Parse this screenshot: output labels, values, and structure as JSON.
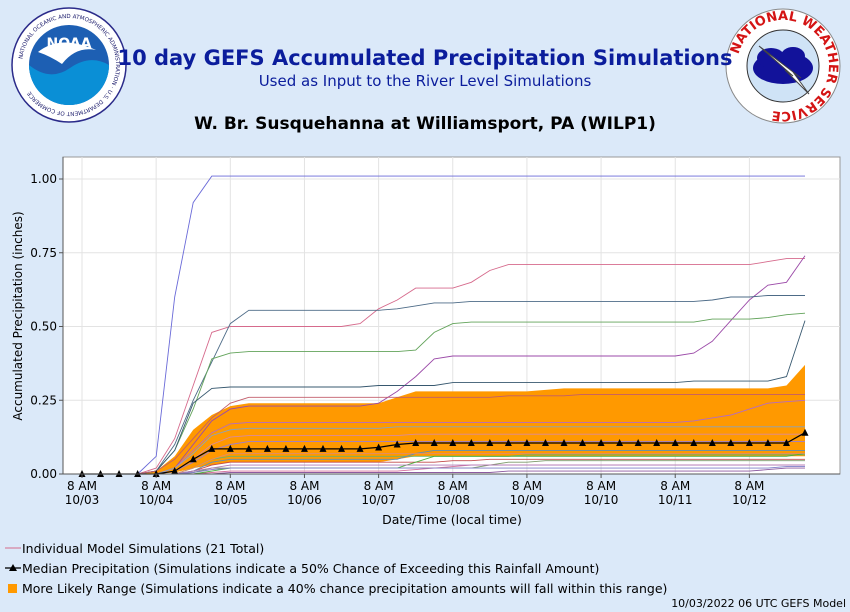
{
  "header": {
    "title": "10 day GEFS Accumulated Precipitation Simulations",
    "subtitle": "Used as Input to the River Level Simulations",
    "station": "W. Br. Susquehanna at Williamsport, PA (WILP1)"
  },
  "logos": {
    "noaa_text": "NOAA",
    "noaa_ring": "NATIONAL OCEANIC AND ATMOSPHERIC ADMINISTRATION · U.S. DEPARTMENT OF COMMERCE",
    "nws_ring": "NATIONAL WEATHER SERVICE"
  },
  "legend": {
    "individual": "Individual Model Simulations (21 Total)",
    "median": "Median Precipitation (Simulations indicate a 50% Chance of Exceeding this Rainfall Amount)",
    "range": "More Likely Range (Simulations indicate a 40% chance precipitation amounts will fall within this range)"
  },
  "footer": "10/03/2022 06 UTC GEFS Model",
  "chart_data": {
    "type": "line",
    "xlabel": "Date/Time (local time)",
    "ylabel": "Accumulated Precipitation (inches)",
    "ylim": [
      0,
      1.05
    ],
    "yticks": [
      "0.00",
      "0.25",
      "0.50",
      "0.75",
      "1.00"
    ],
    "xticks": [
      {
        "t": 0,
        "time": "8 AM",
        "date": "10/03"
      },
      {
        "t": 24,
        "time": "8 AM",
        "date": "10/04"
      },
      {
        "t": 48,
        "time": "8 AM",
        "date": "10/05"
      },
      {
        "t": 72,
        "time": "8 AM",
        "date": "10/06"
      },
      {
        "t": 96,
        "time": "8 AM",
        "date": "10/07"
      },
      {
        "t": 120,
        "time": "8 AM",
        "date": "10/08"
      },
      {
        "t": 144,
        "time": "8 AM",
        "date": "10/09"
      },
      {
        "t": 168,
        "time": "8 AM",
        "date": "10/10"
      },
      {
        "t": 192,
        "time": "8 AM",
        "date": "10/11"
      },
      {
        "t": 216,
        "time": "8 AM",
        "date": "10/12"
      }
    ],
    "xlim": [
      -7,
      240
    ],
    "hours": [
      0,
      6,
      12,
      18,
      24,
      30,
      36,
      42,
      48,
      54,
      60,
      66,
      72,
      78,
      84,
      90,
      96,
      102,
      108,
      114,
      120,
      126,
      132,
      138,
      144,
      150,
      156,
      162,
      168,
      174,
      180,
      186,
      192,
      198,
      204,
      210,
      216,
      222,
      228,
      234
    ],
    "median": [
      0,
      0,
      0,
      0,
      0,
      0.01,
      0.05,
      0.085,
      0.085,
      0.085,
      0.085,
      0.085,
      0.085,
      0.085,
      0.085,
      0.085,
      0.09,
      0.1,
      0.105,
      0.105,
      0.105,
      0.105,
      0.105,
      0.105,
      0.105,
      0.105,
      0.105,
      0.105,
      0.105,
      0.105,
      0.105,
      0.105,
      0.105,
      0.105,
      0.105,
      0.105,
      0.105,
      0.105,
      0.105,
      0.14
    ],
    "range_low": [
      0,
      0,
      0,
      0,
      0,
      0.005,
      0.02,
      0.03,
      0.04,
      0.04,
      0.04,
      0.04,
      0.04,
      0.04,
      0.04,
      0.04,
      0.04,
      0.05,
      0.06,
      0.06,
      0.06,
      0.06,
      0.06,
      0.06,
      0.06,
      0.06,
      0.06,
      0.06,
      0.06,
      0.06,
      0.06,
      0.06,
      0.06,
      0.06,
      0.06,
      0.06,
      0.06,
      0.06,
      0.06,
      0.06
    ],
    "range_high": [
      0,
      0,
      0,
      0,
      0.01,
      0.06,
      0.15,
      0.2,
      0.23,
      0.24,
      0.24,
      0.24,
      0.24,
      0.24,
      0.24,
      0.24,
      0.24,
      0.26,
      0.28,
      0.28,
      0.28,
      0.28,
      0.28,
      0.28,
      0.28,
      0.285,
      0.29,
      0.29,
      0.29,
      0.29,
      0.29,
      0.29,
      0.29,
      0.29,
      0.29,
      0.29,
      0.29,
      0.29,
      0.3,
      0.37
    ],
    "series": [
      {
        "color": "#6a6ad8",
        "values": [
          0,
          0,
          0,
          0,
          0.06,
          0.6,
          0.92,
          1.01,
          1.01,
          1.01,
          1.01,
          1.01,
          1.01,
          1.01,
          1.01,
          1.01,
          1.01,
          1.01,
          1.01,
          1.01,
          1.01,
          1.01,
          1.01,
          1.01,
          1.01,
          1.01,
          1.01,
          1.01,
          1.01,
          1.01,
          1.01,
          1.01,
          1.01,
          1.01,
          1.01,
          1.01,
          1.01,
          1.01,
          1.01,
          1.01
        ]
      },
      {
        "color": "#d66a8c",
        "values": [
          0,
          0,
          0,
          0,
          0.02,
          0.12,
          0.3,
          0.48,
          0.5,
          0.5,
          0.5,
          0.5,
          0.5,
          0.5,
          0.5,
          0.51,
          0.56,
          0.59,
          0.63,
          0.63,
          0.63,
          0.65,
          0.69,
          0.71,
          0.71,
          0.71,
          0.71,
          0.71,
          0.71,
          0.71,
          0.71,
          0.71,
          0.71,
          0.71,
          0.71,
          0.71,
          0.71,
          0.72,
          0.73,
          0.73
        ]
      },
      {
        "color": "#9b4aa8",
        "values": [
          0,
          0,
          0,
          0,
          0,
          0.02,
          0.1,
          0.18,
          0.22,
          0.23,
          0.23,
          0.23,
          0.23,
          0.23,
          0.23,
          0.23,
          0.24,
          0.28,
          0.33,
          0.39,
          0.4,
          0.4,
          0.4,
          0.4,
          0.4,
          0.4,
          0.4,
          0.4,
          0.4,
          0.4,
          0.4,
          0.4,
          0.4,
          0.41,
          0.45,
          0.52,
          0.59,
          0.64,
          0.65,
          0.74
        ]
      },
      {
        "color": "#4d6b87",
        "values": [
          0,
          0,
          0,
          0,
          0.01,
          0.1,
          0.25,
          0.38,
          0.51,
          0.555,
          0.555,
          0.555,
          0.555,
          0.555,
          0.555,
          0.555,
          0.555,
          0.56,
          0.57,
          0.58,
          0.58,
          0.585,
          0.585,
          0.585,
          0.585,
          0.585,
          0.585,
          0.585,
          0.585,
          0.585,
          0.585,
          0.585,
          0.585,
          0.585,
          0.59,
          0.6,
          0.6,
          0.605,
          0.605,
          0.605
        ]
      },
      {
        "color": "#62a35a",
        "values": [
          0,
          0,
          0,
          0,
          0.01,
          0.08,
          0.22,
          0.39,
          0.41,
          0.415,
          0.415,
          0.415,
          0.415,
          0.415,
          0.415,
          0.415,
          0.415,
          0.415,
          0.42,
          0.48,
          0.51,
          0.515,
          0.515,
          0.515,
          0.515,
          0.515,
          0.515,
          0.515,
          0.515,
          0.515,
          0.515,
          0.515,
          0.515,
          0.515,
          0.525,
          0.525,
          0.525,
          0.53,
          0.54,
          0.545
        ]
      },
      {
        "color": "#37586f",
        "values": [
          0,
          0,
          0,
          0,
          0.01,
          0.08,
          0.24,
          0.29,
          0.295,
          0.295,
          0.295,
          0.295,
          0.295,
          0.295,
          0.295,
          0.295,
          0.3,
          0.3,
          0.3,
          0.3,
          0.31,
          0.31,
          0.31,
          0.31,
          0.31,
          0.31,
          0.31,
          0.31,
          0.31,
          0.31,
          0.31,
          0.31,
          0.31,
          0.315,
          0.315,
          0.315,
          0.315,
          0.315,
          0.33,
          0.52
        ]
      },
      {
        "color": "#c25d6a",
        "values": [
          0,
          0,
          0,
          0,
          0.01,
          0.05,
          0.12,
          0.19,
          0.24,
          0.26,
          0.26,
          0.26,
          0.26,
          0.26,
          0.26,
          0.26,
          0.26,
          0.26,
          0.26,
          0.26,
          0.26,
          0.26,
          0.26,
          0.265,
          0.265,
          0.265,
          0.265,
          0.27,
          0.27,
          0.27,
          0.27,
          0.27,
          0.27,
          0.27,
          0.27,
          0.27,
          0.27,
          0.27,
          0.27,
          0.27
        ]
      },
      {
        "color": "#b36cc4",
        "values": [
          0,
          0,
          0,
          0,
          0,
          0.02,
          0.08,
          0.14,
          0.17,
          0.175,
          0.175,
          0.175,
          0.175,
          0.175,
          0.175,
          0.175,
          0.175,
          0.175,
          0.175,
          0.175,
          0.175,
          0.175,
          0.175,
          0.175,
          0.175,
          0.175,
          0.175,
          0.175,
          0.175,
          0.175,
          0.175,
          0.175,
          0.175,
          0.18,
          0.19,
          0.2,
          0.22,
          0.24,
          0.245,
          0.25
        ]
      },
      {
        "color": "#8aa3bd",
        "values": [
          0,
          0,
          0,
          0,
          0,
          0.02,
          0.07,
          0.13,
          0.15,
          0.155,
          0.155,
          0.155,
          0.155,
          0.155,
          0.155,
          0.155,
          0.155,
          0.16,
          0.16,
          0.16,
          0.16,
          0.16,
          0.16,
          0.16,
          0.16,
          0.16,
          0.16,
          0.16,
          0.16,
          0.16,
          0.16,
          0.16,
          0.16,
          0.16,
          0.16,
          0.16,
          0.16,
          0.16,
          0.16,
          0.16
        ]
      },
      {
        "color": "#d98a9c",
        "values": [
          0,
          0,
          0,
          0,
          0,
          0.01,
          0.05,
          0.1,
          0.125,
          0.13,
          0.13,
          0.13,
          0.13,
          0.13,
          0.13,
          0.13,
          0.13,
          0.13,
          0.135,
          0.135,
          0.135,
          0.135,
          0.135,
          0.135,
          0.135,
          0.135,
          0.135,
          0.135,
          0.135,
          0.135,
          0.135,
          0.135,
          0.135,
          0.135,
          0.135,
          0.135,
          0.135,
          0.135,
          0.135,
          0.135
        ]
      },
      {
        "color": "#9c7ed0",
        "values": [
          0,
          0,
          0,
          0,
          0,
          0.01,
          0.04,
          0.08,
          0.1,
          0.11,
          0.11,
          0.11,
          0.11,
          0.11,
          0.11,
          0.11,
          0.11,
          0.11,
          0.11,
          0.11,
          0.11,
          0.11,
          0.11,
          0.11,
          0.11,
          0.11,
          0.11,
          0.11,
          0.11,
          0.11,
          0.11,
          0.11,
          0.11,
          0.11,
          0.11,
          0.11,
          0.11,
          0.11,
          0.11,
          0.11
        ]
      },
      {
        "color": "#6bb36a",
        "values": [
          0,
          0,
          0,
          0,
          0,
          0,
          0.02,
          0.05,
          0.06,
          0.06,
          0.06,
          0.06,
          0.06,
          0.06,
          0.06,
          0.06,
          0.06,
          0.06,
          0.06,
          0.06,
          0.06,
          0.06,
          0.06,
          0.06,
          0.065,
          0.065,
          0.065,
          0.065,
          0.065,
          0.065,
          0.065,
          0.065,
          0.065,
          0.065,
          0.065,
          0.065,
          0.065,
          0.065,
          0.065,
          0.065
        ]
      },
      {
        "color": "#c24b4b",
        "values": [
          0,
          0,
          0,
          0,
          0,
          0,
          0.01,
          0.03,
          0.04,
          0.04,
          0.04,
          0.04,
          0.04,
          0.04,
          0.04,
          0.04,
          0.04,
          0.04,
          0.04,
          0.04,
          0.045,
          0.045,
          0.05,
          0.05,
          0.05,
          0.05,
          0.05,
          0.05,
          0.05,
          0.05,
          0.05,
          0.05,
          0.05,
          0.05,
          0.05,
          0.05,
          0.05,
          0.05,
          0.05,
          0.05
        ]
      },
      {
        "color": "#7d9a6a",
        "values": [
          0,
          0,
          0,
          0,
          0,
          0,
          0.005,
          0.02,
          0.02,
          0.02,
          0.02,
          0.02,
          0.02,
          0.02,
          0.02,
          0.02,
          0.02,
          0.02,
          0.02,
          0.02,
          0.02,
          0.02,
          0.03,
          0.04,
          0.04,
          0.045,
          0.045,
          0.045,
          0.045,
          0.045,
          0.045,
          0.045,
          0.045,
          0.045,
          0.045,
          0.045,
          0.045,
          0.045,
          0.045,
          0.045
        ]
      },
      {
        "color": "#d46f9b",
        "values": [
          0,
          0,
          0,
          0,
          0,
          0,
          0,
          0.005,
          0.01,
          0.01,
          0.01,
          0.01,
          0.01,
          0.01,
          0.01,
          0.01,
          0.01,
          0.01,
          0.015,
          0.02,
          0.025,
          0.03,
          0.03,
          0.03,
          0.03,
          0.03,
          0.03,
          0.03,
          0.03,
          0.03,
          0.03,
          0.03,
          0.03,
          0.03,
          0.03,
          0.03,
          0.03,
          0.03,
          0.03,
          0.03
        ]
      },
      {
        "color": "#8c5aa0",
        "values": [
          0,
          0,
          0,
          0,
          0,
          0,
          0,
          0,
          0.005,
          0.005,
          0.005,
          0.005,
          0.005,
          0.005,
          0.005,
          0.005,
          0.005,
          0.005,
          0.005,
          0.005,
          0.005,
          0.005,
          0.005,
          0.01,
          0.01,
          0.01,
          0.01,
          0.01,
          0.01,
          0.01,
          0.01,
          0.01,
          0.01,
          0.01,
          0.01,
          0.01,
          0.01,
          0.015,
          0.02,
          0.02
        ]
      },
      {
        "color": "#5f8fb5",
        "values": [
          0,
          0,
          0,
          0,
          0,
          0,
          0.01,
          0.04,
          0.05,
          0.05,
          0.05,
          0.05,
          0.05,
          0.05,
          0.05,
          0.05,
          0.05,
          0.05,
          0.07,
          0.08,
          0.08,
          0.08,
          0.08,
          0.08,
          0.08,
          0.08,
          0.08,
          0.08,
          0.08,
          0.08,
          0.08,
          0.08,
          0.08,
          0.08,
          0.08,
          0.08,
          0.08,
          0.08,
          0.08,
          0.08
        ]
      },
      {
        "color": "#4caf3c",
        "values": [
          0,
          0,
          0,
          0,
          0,
          0,
          0,
          0.01,
          0.02,
          0.02,
          0.02,
          0.02,
          0.02,
          0.02,
          0.02,
          0.02,
          0.02,
          0.02,
          0.04,
          0.06,
          0.06,
          0.06,
          0.06,
          0.06,
          0.06,
          0.06,
          0.06,
          0.06,
          0.06,
          0.06,
          0.06,
          0.06,
          0.06,
          0.06,
          0.06,
          0.06,
          0.06,
          0.06,
          0.06,
          0.07
        ]
      },
      {
        "color": "#b07ab8",
        "values": [
          0,
          0,
          0,
          0,
          0,
          0,
          0.01,
          0.02,
          0.03,
          0.03,
          0.03,
          0.03,
          0.03,
          0.03,
          0.03,
          0.03,
          0.03,
          0.03,
          0.03,
          0.03,
          0.03,
          0.03,
          0.03,
          0.03,
          0.03,
          0.03,
          0.03,
          0.03,
          0.03,
          0.03,
          0.03,
          0.03,
          0.03,
          0.03,
          0.03,
          0.03,
          0.03,
          0.03,
          0.03,
          0.03
        ]
      },
      {
        "color": "#7e7ec7",
        "values": [
          0,
          0,
          0,
          0,
          0,
          0,
          0.005,
          0.015,
          0.02,
          0.02,
          0.02,
          0.02,
          0.02,
          0.02,
          0.02,
          0.02,
          0.02,
          0.02,
          0.02,
          0.02,
          0.02,
          0.02,
          0.02,
          0.02,
          0.02,
          0.02,
          0.02,
          0.02,
          0.02,
          0.02,
          0.02,
          0.02,
          0.02,
          0.02,
          0.02,
          0.02,
          0.02,
          0.02,
          0.025,
          0.025
        ]
      },
      {
        "color": "#e08d6b",
        "values": [
          0,
          0,
          0,
          0,
          0,
          0,
          0.02,
          0.05,
          0.07,
          0.07,
          0.07,
          0.07,
          0.07,
          0.07,
          0.07,
          0.07,
          0.07,
          0.07,
          0.07,
          0.07,
          0.07,
          0.07,
          0.07,
          0.07,
          0.07,
          0.07,
          0.07,
          0.07,
          0.07,
          0.07,
          0.07,
          0.07,
          0.07,
          0.07,
          0.07,
          0.07,
          0.07,
          0.07,
          0.07,
          0.07
        ]
      }
    ]
  }
}
